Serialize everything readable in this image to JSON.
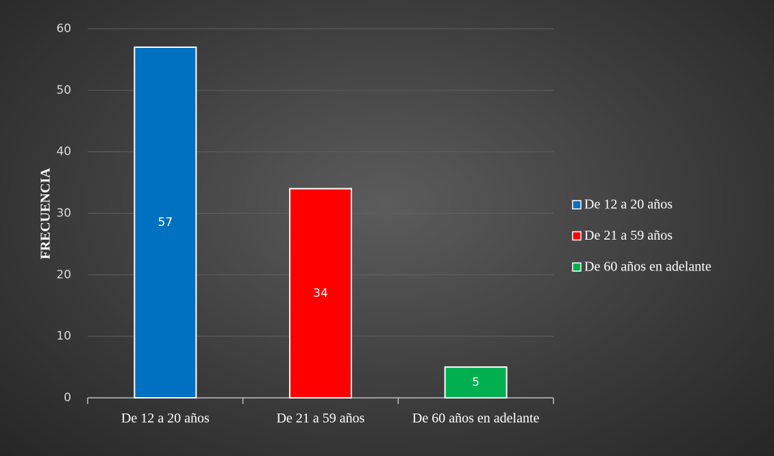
{
  "chart_data": {
    "type": "bar",
    "y_label": "FRECUENCIA",
    "categories": [
      "De 12 a 20 años",
      "De 21 a 59 años",
      "De 60 años en adelante"
    ],
    "values": [
      57,
      34,
      5
    ],
    "colors": [
      "#0070c0",
      "#ff0000",
      "#00b050"
    ],
    "ylim": [
      0,
      60
    ],
    "yticks": [
      0,
      10,
      20,
      30,
      40,
      50,
      60
    ],
    "grid": true,
    "legend": "right"
  }
}
